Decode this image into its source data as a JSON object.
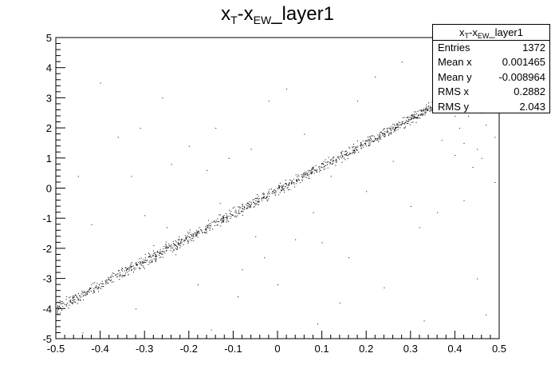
{
  "title": {
    "base": "x",
    "sub1": "T",
    "mid": "-x",
    "sub2": "EW",
    "tail": "_layer1"
  },
  "stats": {
    "name": {
      "base": "x",
      "sub1": "T",
      "mid": "-x",
      "sub2": "EW",
      "tail": "_layer1"
    },
    "rows": [
      {
        "label": "Entries",
        "value": "1372"
      },
      {
        "label": "Mean x",
        "value": "0.001465"
      },
      {
        "label": "Mean y",
        "value": "-0.008964"
      },
      {
        "label": "RMS x",
        "value": "0.2882"
      },
      {
        "label": "RMS y",
        "value": "2.043"
      }
    ]
  },
  "chart_data": {
    "type": "scatter",
    "title": "xT-xEW_layer1",
    "xlabel": "",
    "ylabel": "",
    "xlim": [
      -0.5,
      0.5
    ],
    "ylim": [
      -5,
      5
    ],
    "xticks": [
      "-0.5",
      "-0.4",
      "-0.3",
      "-0.2",
      "-0.1",
      "0",
      "0.1",
      "0.2",
      "0.3",
      "0.4",
      "0.5"
    ],
    "yticks": [
      "-5",
      "-4",
      "-3",
      "-2",
      "-1",
      "0",
      "1",
      "2",
      "3",
      "4",
      "5"
    ],
    "grid": false,
    "legend": "top-right",
    "marker_color": "#000000",
    "band": {
      "slope": 7.9,
      "intercept": -0.05,
      "x_range": [
        -0.5,
        0.36
      ],
      "approx_points": 1200
    },
    "outliers": [
      [
        -0.45,
        0.4
      ],
      [
        -0.44,
        -4.8
      ],
      [
        -0.42,
        -1.2
      ],
      [
        -0.4,
        3.5
      ],
      [
        -0.36,
        1.7
      ],
      [
        -0.34,
        -2.7
      ],
      [
        -0.33,
        0.4
      ],
      [
        -0.32,
        -4.0
      ],
      [
        -0.31,
        2.0
      ],
      [
        -0.3,
        -0.9
      ],
      [
        -0.28,
        -1.9
      ],
      [
        -0.26,
        3.0
      ],
      [
        -0.25,
        -1.3
      ],
      [
        -0.24,
        0.8
      ],
      [
        -0.23,
        -2.2
      ],
      [
        -0.2,
        1.4
      ],
      [
        -0.18,
        -3.2
      ],
      [
        -0.16,
        0.6
      ],
      [
        -0.15,
        -4.7
      ],
      [
        -0.14,
        2.0
      ],
      [
        -0.13,
        -0.5
      ],
      [
        -0.11,
        1.0
      ],
      [
        -0.09,
        -3.6
      ],
      [
        -0.08,
        -2.7
      ],
      [
        -0.06,
        1.3
      ],
      [
        -0.05,
        -1.6
      ],
      [
        -0.03,
        -2.3
      ],
      [
        -0.02,
        2.9
      ],
      [
        0.0,
        -3.2
      ],
      [
        0.02,
        3.3
      ],
      [
        0.04,
        -1.7
      ],
      [
        0.06,
        1.8
      ],
      [
        0.08,
        -0.8
      ],
      [
        0.09,
        -4.5
      ],
      [
        0.1,
        -1.8
      ],
      [
        0.12,
        0.4
      ],
      [
        0.14,
        -3.8
      ],
      [
        0.16,
        -2.3
      ],
      [
        0.18,
        2.9
      ],
      [
        0.2,
        -0.1
      ],
      [
        0.22,
        3.7
      ],
      [
        0.24,
        -3.3
      ],
      [
        0.26,
        0.9
      ],
      [
        0.28,
        4.2
      ],
      [
        0.3,
        -0.6
      ],
      [
        0.32,
        -1.3
      ],
      [
        0.33,
        -4.4
      ],
      [
        0.35,
        3.0
      ],
      [
        0.36,
        -0.8
      ],
      [
        0.37,
        1.6
      ],
      [
        0.38,
        4.0
      ],
      [
        0.39,
        3.3
      ],
      [
        0.4,
        2.4
      ],
      [
        0.41,
        2.0
      ],
      [
        0.42,
        1.5
      ],
      [
        0.43,
        2.4
      ],
      [
        0.44,
        2.9
      ],
      [
        0.45,
        1.3
      ],
      [
        0.46,
        1.0
      ],
      [
        0.47,
        2.1
      ],
      [
        0.48,
        3.2
      ],
      [
        0.49,
        1.7
      ],
      [
        0.42,
        -0.4
      ],
      [
        0.45,
        -3.0
      ],
      [
        0.47,
        -4.2
      ],
      [
        0.44,
        0.7
      ],
      [
        0.38,
        2.8
      ],
      [
        0.4,
        1.1
      ],
      [
        0.46,
        2.5
      ],
      [
        0.49,
        0.2
      ]
    ]
  }
}
